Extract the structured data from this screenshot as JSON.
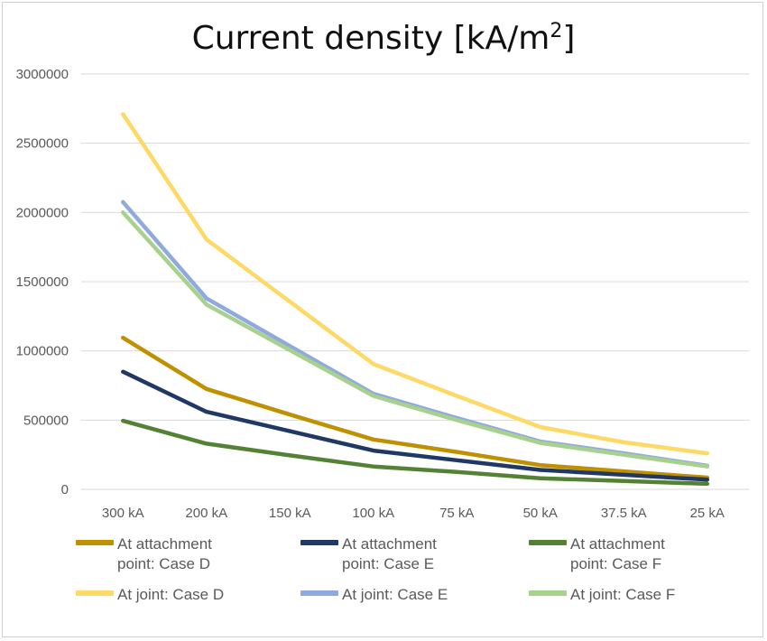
{
  "chart_data": {
    "type": "line",
    "title": "Current density [kA/m",
    "title_sup": "2",
    "title_end": "]",
    "categories": [
      "300 kA",
      "200 kA",
      "150 kA",
      "100 kA",
      "75 kA",
      "50 kA",
      "37.5 kA",
      "25 kA"
    ],
    "ylim": [
      0,
      3000000
    ],
    "yticks": [
      "0",
      "500000",
      "1000000",
      "1500000",
      "2000000",
      "2500000",
      "3000000"
    ],
    "grid": true,
    "legend_position": "bottom",
    "series": [
      {
        "name": "At attachment point: Case D",
        "color": "#BF9000",
        "values": [
          1095000,
          725000,
          540000,
          360000,
          270000,
          175000,
          130000,
          85000
        ]
      },
      {
        "name": "At attachment point: Case E",
        "color": "#203864",
        "values": [
          850000,
          560000,
          420000,
          280000,
          210000,
          140000,
          105000,
          70000
        ]
      },
      {
        "name": "At attachment point: Case F",
        "color": "#548235",
        "values": [
          495000,
          330000,
          245000,
          165000,
          125000,
          80000,
          60000,
          40000
        ]
      },
      {
        "name": "At joint: Case D",
        "color": "#FFD966",
        "values": [
          2710000,
          1805000,
          1355000,
          905000,
          675000,
          450000,
          340000,
          260000
        ]
      },
      {
        "name": "At joint: Case E",
        "color": "#8FAADC",
        "values": [
          2075000,
          1380000,
          1035000,
          690000,
          515000,
          345000,
          260000,
          170000
        ]
      },
      {
        "name": "At joint: Case F",
        "color": "#A9D18E",
        "values": [
          2000000,
          1335000,
          1005000,
          675000,
          500000,
          335000,
          250000,
          165000
        ]
      }
    ]
  }
}
